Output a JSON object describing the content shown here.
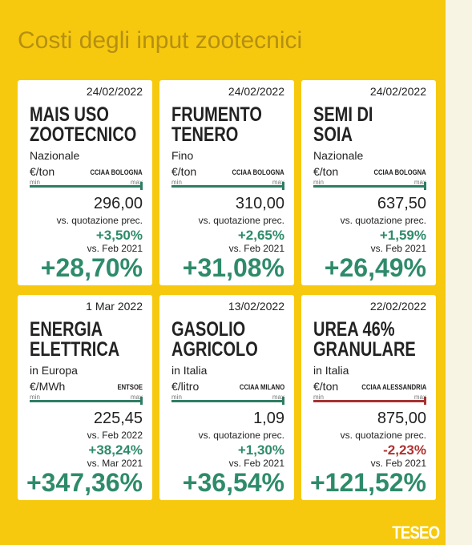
{
  "header": {
    "title": "Costi degli input zootecnici"
  },
  "cards": [
    {
      "date": "24/02/2022",
      "title": [
        "MAIS USO",
        "ZOOTECNICO"
      ],
      "subtitle": "Nazionale",
      "unit": "€/ton",
      "source": "CCIAA BOLOGNA",
      "min": "min",
      "max": "max",
      "color": "#2e7d64",
      "price": "296,00",
      "changes": [
        {
          "label": "vs. quotazione prec.",
          "text": "+3,50%",
          "color": "#2e8b6a"
        },
        {
          "label": "vs. Feb 2021",
          "text": "+28,70%",
          "color": "#2e8b6a"
        }
      ]
    },
    {
      "date": "24/02/2022",
      "title": [
        "FRUMENTO",
        "TENERO"
      ],
      "subtitle": "Fino",
      "unit": "€/ton",
      "source": "CCIAA BOLOGNA",
      "min": "min",
      "max": "max",
      "color": "#2e7d64",
      "price": "310,00",
      "changes": [
        {
          "label": "vs. quotazione prec.",
          "text": "+2,65%",
          "color": "#2e8b6a"
        },
        {
          "label": "vs. Feb 2021",
          "text": "+31,08%",
          "color": "#2e8b6a"
        }
      ]
    },
    {
      "date": "24/02/2022",
      "title": [
        "SEMI DI",
        "SOIA"
      ],
      "subtitle": "Nazionale",
      "unit": "€/ton",
      "source": "CCIAA BOLOGNA",
      "min": "min",
      "max": "max",
      "color": "#2e7d64",
      "price": "637,50",
      "changes": [
        {
          "label": "vs. quotazione prec.",
          "text": "+1,59%",
          "color": "#2e8b6a"
        },
        {
          "label": "vs. Feb 2021",
          "text": "+26,49%",
          "color": "#2e8b6a"
        }
      ]
    },
    {
      "date": "1 Mar 2022",
      "title": [
        "ENERGIA",
        "ELETTRICA"
      ],
      "subtitle": "in Europa",
      "unit": "€/MWh",
      "source": "ENTSOE",
      "min": "min",
      "max": "max",
      "color": "#2e7d64",
      "price": "225,45",
      "changes": [
        {
          "label": "vs. Feb 2022",
          "text": "+38,24%",
          "color": "#2e8b6a"
        },
        {
          "label": "vs. Mar 2021",
          "text": "+347,36%",
          "color": "#2e8b6a"
        }
      ]
    },
    {
      "date": "13/02/2022",
      "title": [
        "GASOLIO",
        "AGRICOLO"
      ],
      "subtitle": "in Italia",
      "unit": "€/litro",
      "source": "CCIAA MILANO",
      "min": "min",
      "max": "max",
      "color": "#2e7d64",
      "price": "1,09",
      "changes": [
        {
          "label": "vs. quotazione prec.",
          "text": "+1,30%",
          "color": "#2e8b6a"
        },
        {
          "label": "vs. Feb 2021",
          "text": "+36,54%",
          "color": "#2e8b6a"
        }
      ]
    },
    {
      "date": "22/02/2022",
      "title": [
        "UREA 46%",
        "GRANULARE"
      ],
      "subtitle": "in Italia",
      "unit": "€/ton",
      "source": "CCIAA ALESSANDRIA",
      "min": "min",
      "max": "max",
      "color": "#a83232",
      "price": "875,00",
      "changes": [
        {
          "label": "vs. quotazione prec.",
          "text": "-2,23%",
          "color": "#b03030"
        },
        {
          "label": "vs. Feb 2021",
          "text": "+121,52%",
          "color": "#2e8b6a"
        }
      ]
    }
  ],
  "footer": {
    "logo": "TESEO"
  }
}
